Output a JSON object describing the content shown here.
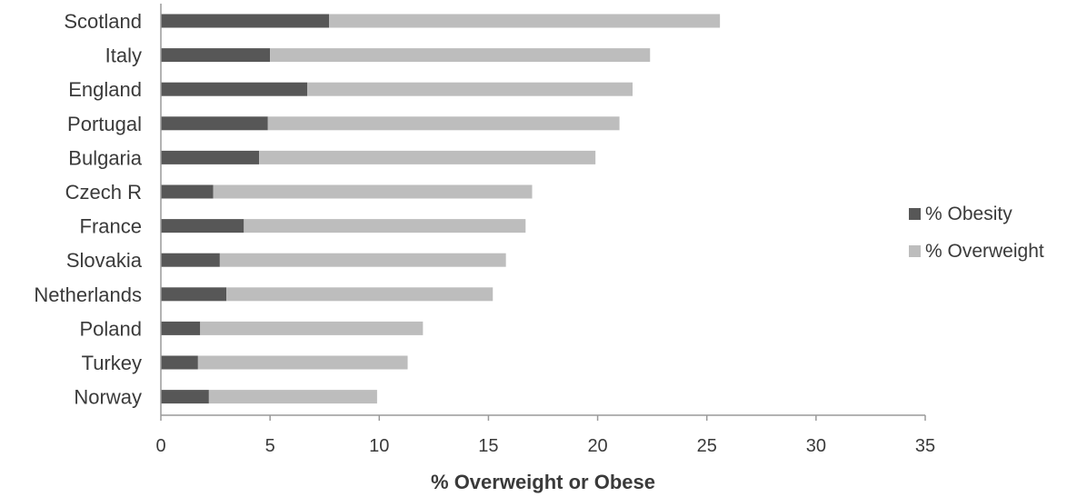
{
  "chart_data": {
    "type": "bar",
    "orientation": "horizontal",
    "stacked": true,
    "categories": [
      "Scotland",
      "Italy",
      "England",
      "Portugal",
      "Bulgaria",
      "Czech R",
      "France",
      "Slovakia",
      "Netherlands",
      "Poland",
      "Turkey",
      "Norway"
    ],
    "series": [
      {
        "name": "% Obesity",
        "color": "#575757",
        "values": [
          7.7,
          5.0,
          6.7,
          4.9,
          4.5,
          2.4,
          3.8,
          2.7,
          3.0,
          1.8,
          1.7,
          2.2
        ]
      },
      {
        "name": "% Overweight",
        "color": "#bdbdbd",
        "values": [
          17.9,
          17.4,
          14.9,
          16.1,
          15.4,
          14.6,
          12.9,
          13.1,
          12.2,
          10.2,
          9.6,
          7.7
        ]
      }
    ],
    "xlabel": "% Overweight or Obese",
    "ylabel": "",
    "xlim": [
      0,
      35
    ],
    "xticks": [
      "0",
      "5",
      "10",
      "15",
      "20",
      "25",
      "30",
      "35"
    ],
    "grid": false,
    "legend_position": "right"
  }
}
